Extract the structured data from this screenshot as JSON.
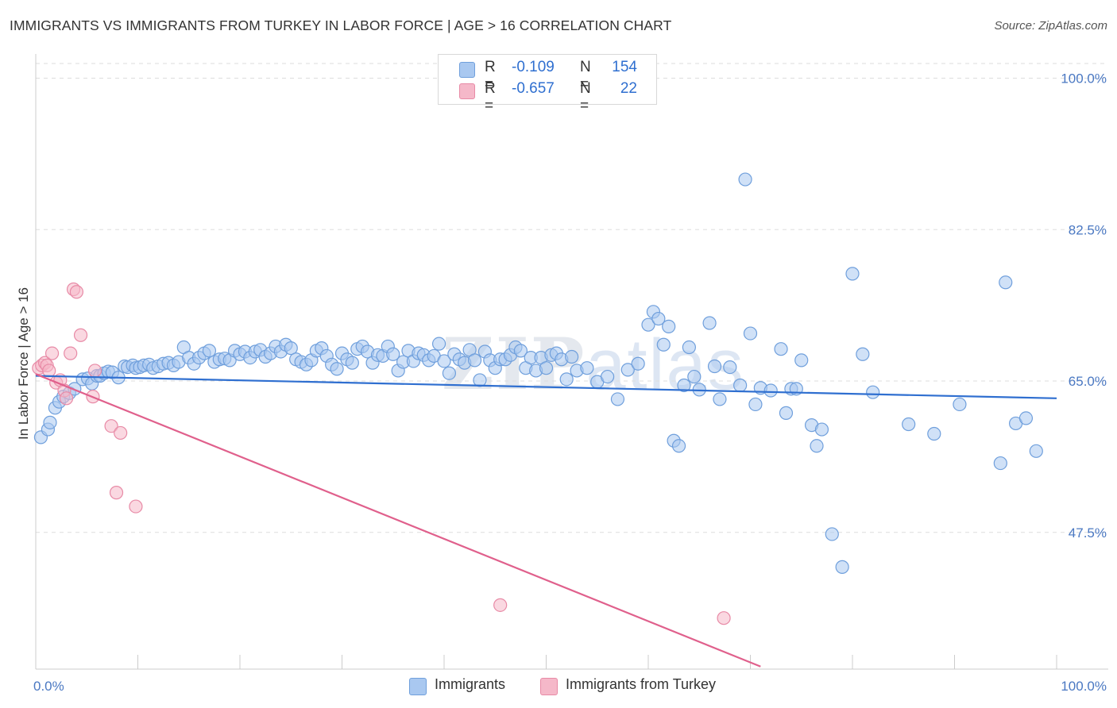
{
  "title": "IMMIGRANTS VS IMMIGRANTS FROM TURKEY IN LABOR FORCE | AGE > 16 CORRELATION CHART",
  "source": "Source: ZipAtlas.com",
  "watermark": {
    "zip": "ZIP",
    "atlas": "atlas"
  },
  "legend": {
    "row1": {
      "r_label": "R =",
      "r_value": "-0.109",
      "n_label": "N =",
      "n_value": "154"
    },
    "row2": {
      "r_label": "R =",
      "r_value": "-0.657",
      "n_label": "N =",
      "n_value": "22"
    }
  },
  "bottom_legend": {
    "series1": "Immigrants",
    "series2": "Immigrants from Turkey"
  },
  "colors": {
    "blue_fill": "#a9c8f0",
    "blue_stroke": "#6f9fdc",
    "blue_line": "#2f6fd0",
    "pink_fill": "#f5b8c9",
    "pink_stroke": "#e88aa6",
    "pink_line": "#e0608c",
    "axis_text": "#4a78c2",
    "grid": "#dddddd"
  },
  "chart_data": {
    "type": "scatter",
    "title": "IMMIGRANTS VS IMMIGRANTS FROM TURKEY IN LABOR FORCE | AGE > 16 CORRELATION CHART",
    "xlabel": "",
    "ylabel": "In Labor Force | Age > 16",
    "xlim": [
      0,
      100
    ],
    "ylim": [
      31.7,
      101.7
    ],
    "x_tick_labels": [
      "0.0%",
      "100.0%"
    ],
    "y_ticks": [
      47.5,
      65.0,
      82.5,
      100.0
    ],
    "y_tick_labels": [
      "47.5%",
      "65.0%",
      "82.5%",
      "100.0%"
    ],
    "grid": true,
    "series": [
      {
        "name": "Immigrants",
        "r": -0.109,
        "n": 154,
        "trend": {
          "x": [
            0,
            100
          ],
          "y": [
            65.6,
            63.0
          ]
        },
        "points": [
          [
            0.5,
            58.5
          ],
          [
            1.2,
            59.4
          ],
          [
            1.4,
            60.2
          ],
          [
            1.9,
            61.9
          ],
          [
            2.3,
            62.6
          ],
          [
            2.7,
            63.2
          ],
          [
            3.3,
            63.6
          ],
          [
            3.8,
            64.1
          ],
          [
            4.6,
            65.2
          ],
          [
            5.1,
            65.3
          ],
          [
            5.5,
            64.7
          ],
          [
            6.0,
            65.6
          ],
          [
            6.3,
            65.6
          ],
          [
            6.7,
            65.9
          ],
          [
            7.1,
            66.1
          ],
          [
            7.5,
            66.0
          ],
          [
            8.1,
            65.4
          ],
          [
            8.7,
            66.7
          ],
          [
            9.0,
            66.6
          ],
          [
            9.5,
            66.8
          ],
          [
            9.8,
            66.5
          ],
          [
            10.2,
            66.6
          ],
          [
            10.6,
            66.8
          ],
          [
            11.1,
            66.9
          ],
          [
            11.5,
            66.5
          ],
          [
            12.0,
            66.7
          ],
          [
            12.5,
            67.0
          ],
          [
            13.0,
            67.1
          ],
          [
            13.5,
            66.8
          ],
          [
            14.0,
            67.2
          ],
          [
            14.5,
            68.9
          ],
          [
            15.0,
            67.7
          ],
          [
            15.5,
            67.0
          ],
          [
            16.0,
            67.7
          ],
          [
            16.5,
            68.2
          ],
          [
            17.0,
            68.5
          ],
          [
            17.5,
            67.2
          ],
          [
            18.0,
            67.5
          ],
          [
            18.5,
            67.6
          ],
          [
            19.0,
            67.4
          ],
          [
            19.5,
            68.5
          ],
          [
            20.0,
            68.1
          ],
          [
            20.5,
            68.4
          ],
          [
            21.0,
            67.7
          ],
          [
            21.5,
            68.4
          ],
          [
            22.0,
            68.6
          ],
          [
            22.5,
            67.8
          ],
          [
            23.0,
            68.2
          ],
          [
            23.5,
            69.0
          ],
          [
            24.0,
            68.4
          ],
          [
            24.5,
            69.2
          ],
          [
            25.0,
            68.8
          ],
          [
            25.5,
            67.5
          ],
          [
            26.0,
            67.2
          ],
          [
            26.5,
            66.9
          ],
          [
            27.0,
            67.4
          ],
          [
            27.5,
            68.5
          ],
          [
            28.0,
            68.8
          ],
          [
            28.5,
            67.9
          ],
          [
            29.0,
            66.9
          ],
          [
            29.5,
            66.4
          ],
          [
            30.0,
            68.2
          ],
          [
            30.5,
            67.5
          ],
          [
            31.0,
            67.1
          ],
          [
            31.5,
            68.7
          ],
          [
            32.0,
            69.0
          ],
          [
            32.5,
            68.4
          ],
          [
            33.0,
            67.1
          ],
          [
            33.5,
            68.0
          ],
          [
            34.0,
            67.9
          ],
          [
            34.5,
            69.0
          ],
          [
            35.0,
            68.1
          ],
          [
            35.5,
            66.2
          ],
          [
            36.0,
            67.2
          ],
          [
            36.5,
            68.5
          ],
          [
            37.0,
            67.3
          ],
          [
            37.5,
            68.2
          ],
          [
            38.0,
            68.0
          ],
          [
            38.5,
            67.4
          ],
          [
            39.0,
            67.9
          ],
          [
            39.5,
            69.3
          ],
          [
            40.0,
            67.3
          ],
          [
            40.5,
            65.9
          ],
          [
            41.0,
            68.1
          ],
          [
            41.5,
            67.5
          ],
          [
            42.0,
            67.1
          ],
          [
            42.5,
            68.6
          ],
          [
            43.0,
            67.4
          ],
          [
            43.5,
            65.1
          ],
          [
            44.0,
            68.4
          ],
          [
            44.5,
            67.4
          ],
          [
            45.0,
            66.5
          ],
          [
            45.5,
            67.5
          ],
          [
            46.0,
            67.5
          ],
          [
            46.5,
            68.0
          ],
          [
            47.0,
            68.9
          ],
          [
            47.5,
            68.5
          ],
          [
            48.0,
            66.5
          ],
          [
            48.5,
            67.7
          ],
          [
            49.0,
            66.2
          ],
          [
            49.5,
            67.7
          ],
          [
            50.0,
            66.5
          ],
          [
            50.5,
            68.0
          ],
          [
            51.0,
            68.2
          ],
          [
            51.5,
            67.5
          ],
          [
            52.0,
            65.2
          ],
          [
            52.5,
            67.8
          ],
          [
            53.0,
            66.2
          ],
          [
            54.0,
            66.5
          ],
          [
            55.0,
            64.9
          ],
          [
            56.0,
            65.5
          ],
          [
            57.0,
            62.9
          ],
          [
            58.0,
            66.3
          ],
          [
            59.0,
            67.0
          ],
          [
            60.0,
            71.5
          ],
          [
            60.5,
            73.0
          ],
          [
            61.0,
            72.2
          ],
          [
            61.5,
            69.2
          ],
          [
            62.0,
            71.3
          ],
          [
            62.5,
            58.1
          ],
          [
            63.0,
            57.5
          ],
          [
            63.5,
            64.5
          ],
          [
            64.0,
            68.9
          ],
          [
            64.5,
            65.5
          ],
          [
            65.0,
            64.0
          ],
          [
            66.0,
            71.7
          ],
          [
            66.5,
            66.7
          ],
          [
            67.0,
            62.9
          ],
          [
            68.0,
            66.6
          ],
          [
            69.0,
            64.5
          ],
          [
            69.5,
            88.3
          ],
          [
            70.0,
            70.5
          ],
          [
            70.5,
            62.3
          ],
          [
            71.0,
            64.2
          ],
          [
            72.0,
            63.9
          ],
          [
            73.0,
            68.7
          ],
          [
            73.5,
            61.3
          ],
          [
            74.0,
            64.1
          ],
          [
            74.5,
            64.1
          ],
          [
            75.0,
            67.4
          ],
          [
            76.0,
            59.9
          ],
          [
            76.5,
            57.5
          ],
          [
            77.0,
            59.4
          ],
          [
            78.0,
            47.3
          ],
          [
            79.0,
            43.5
          ],
          [
            80.0,
            77.4
          ],
          [
            81.0,
            68.1
          ],
          [
            82.0,
            63.7
          ],
          [
            85.5,
            60.0
          ],
          [
            88.0,
            58.9
          ],
          [
            90.5,
            62.3
          ],
          [
            94.5,
            55.5
          ],
          [
            95.0,
            76.4
          ],
          [
            96.0,
            60.1
          ],
          [
            97.0,
            60.7
          ],
          [
            98.0,
            56.9
          ]
        ]
      },
      {
        "name": "Immigrants from Turkey",
        "r": -0.657,
        "n": 22,
        "trend": {
          "x": [
            0,
            71
          ],
          "y": [
            65.8,
            32.0
          ]
        },
        "points": [
          [
            0.3,
            66.5
          ],
          [
            0.6,
            66.8
          ],
          [
            0.9,
            67.1
          ],
          [
            1.1,
            66.8
          ],
          [
            1.3,
            66.2
          ],
          [
            1.6,
            68.2
          ],
          [
            2.0,
            64.8
          ],
          [
            2.4,
            65.1
          ],
          [
            2.8,
            63.9
          ],
          [
            3.0,
            63.0
          ],
          [
            3.4,
            68.2
          ],
          [
            3.7,
            75.6
          ],
          [
            4.0,
            75.3
          ],
          [
            4.4,
            70.3
          ],
          [
            5.6,
            63.2
          ],
          [
            5.8,
            66.2
          ],
          [
            7.4,
            59.8
          ],
          [
            7.9,
            52.1
          ],
          [
            8.3,
            59.0
          ],
          [
            9.8,
            50.5
          ],
          [
            45.5,
            39.1
          ],
          [
            67.4,
            37.6
          ]
        ]
      }
    ]
  }
}
